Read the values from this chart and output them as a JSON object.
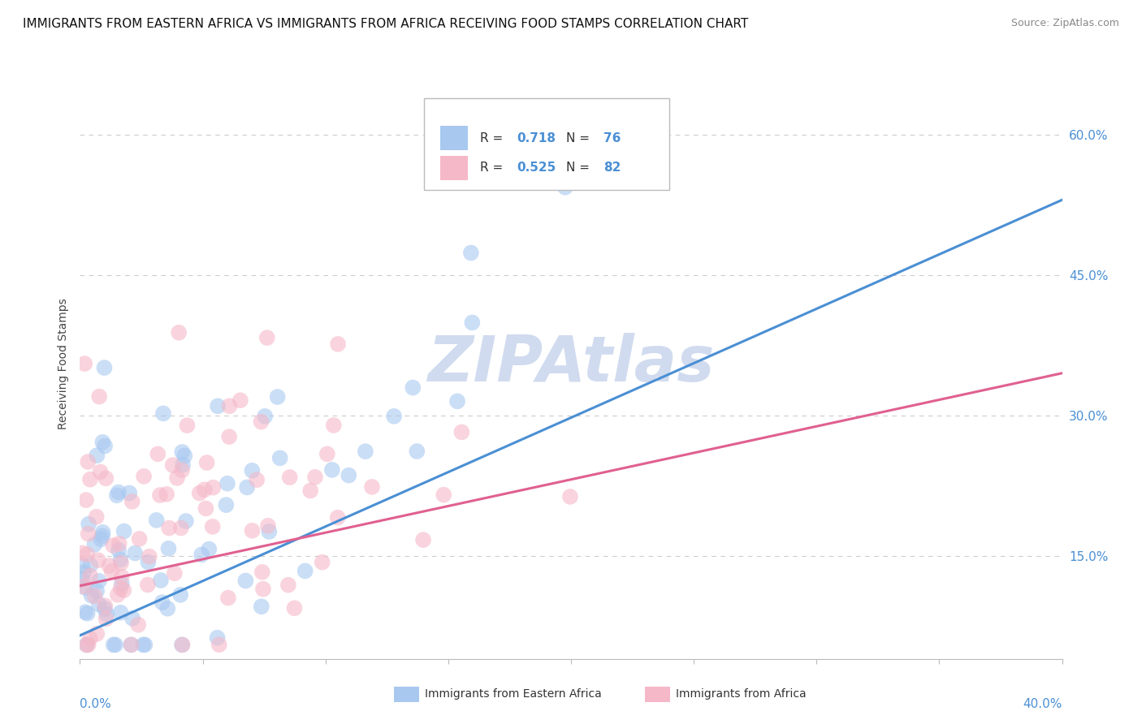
{
  "title": "IMMIGRANTS FROM EASTERN AFRICA VS IMMIGRANTS FROM AFRICA RECEIVING FOOD STAMPS CORRELATION CHART",
  "source": "Source: ZipAtlas.com",
  "ylabel": "Receiving Food Stamps",
  "xlim": [
    0.0,
    0.4
  ],
  "ylim": [
    0.04,
    0.67
  ],
  "blue_R": 0.718,
  "blue_N": 76,
  "pink_R": 0.525,
  "pink_N": 82,
  "blue_color": "#a8c8f0",
  "pink_color": "#f5b8c8",
  "blue_line_color": "#4a8fd4",
  "pink_line_color": "#e06090",
  "watermark": "ZIPAtlas",
  "blue_line_y0": 0.065,
  "blue_line_y1": 0.53,
  "pink_line_y0": 0.118,
  "pink_line_y1": 0.345,
  "y_tick_vals": [
    0.15,
    0.3,
    0.45,
    0.6
  ],
  "y_tick_labs": [
    "15.0%",
    "30.0%",
    "45.0%",
    "60.0%"
  ],
  "title_fontsize": 11,
  "source_fontsize": 9,
  "background_color": "#ffffff",
  "grid_color": "#cccccc",
  "watermark_color": "#ccd8ee",
  "legend_text_color": "#4a8fd4",
  "legend_R_label": "R = ",
  "legend_N_label": "N = "
}
